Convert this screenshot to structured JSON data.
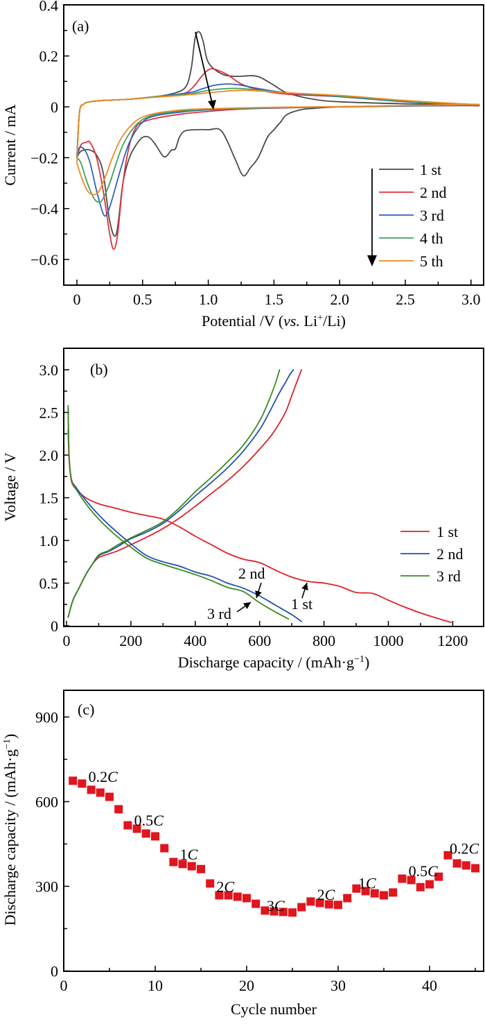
{
  "chart_data": [
    {
      "type": "line",
      "panel_label": "(a)",
      "title": "",
      "xlabel": "Potential /V (vs. Li⁺/Li)",
      "xlabel_parts": [
        "Potential /V (",
        "vs.",
        " Li",
        "+",
        "/Li)"
      ],
      "ylabel": "Current / mA",
      "xlim": [
        -0.1,
        3.1
      ],
      "ylim": [
        -0.7,
        0.4
      ],
      "xticks": [
        0,
        0.5,
        1.0,
        1.5,
        2.0,
        2.5,
        3.0
      ],
      "xtick_labels": [
        "0",
        "0.5",
        "1.0",
        "1.5",
        "2.0",
        "2.5",
        "3.0"
      ],
      "yticks": [
        0.4,
        0.2,
        0,
        -0.2,
        -0.4,
        -0.6
      ],
      "ytick_labels": [
        "0.4",
        "0.2",
        "0",
        "−0.2",
        "−0.4",
        "−0.6"
      ],
      "grid": false,
      "legend_position": "bottom-right",
      "legend_arrow": "down",
      "annotation": "arrow pointing down across anodic peaks (decreasing current with cycle number)",
      "series": [
        {
          "name": "1 st",
          "color": "#4a4a4a",
          "x": [
            0.0,
            0.02,
            0.05,
            0.1,
            0.15,
            0.2,
            0.25,
            0.3,
            0.35,
            0.4,
            0.45,
            0.5,
            0.55,
            0.6,
            0.65,
            0.68,
            0.72,
            0.75,
            0.78,
            0.82,
            0.9,
            1.0,
            1.1,
            1.2,
            1.25,
            1.28,
            1.32,
            1.38,
            1.45,
            1.5,
            1.55,
            1.6,
            1.7,
            1.8,
            2.0,
            2.5,
            3.0,
            3.0,
            2.5,
            2.0,
            1.8,
            1.6,
            1.5,
            1.4,
            1.35,
            1.3,
            1.2,
            1.1,
            1.0,
            0.96,
            0.93,
            0.9,
            0.87,
            0.83,
            0.75,
            0.6,
            0.4,
            0.2,
            0.1,
            0.05,
            0.02,
            0.0
          ],
          "y": [
            -0.2,
            -0.18,
            -0.17,
            -0.17,
            -0.19,
            -0.26,
            -0.45,
            -0.5,
            -0.3,
            -0.2,
            -0.15,
            -0.12,
            -0.12,
            -0.15,
            -0.19,
            -0.195,
            -0.17,
            -0.165,
            -0.12,
            -0.095,
            -0.09,
            -0.09,
            -0.095,
            -0.2,
            -0.26,
            -0.27,
            -0.24,
            -0.2,
            -0.12,
            -0.09,
            -0.06,
            -0.03,
            -0.012,
            -0.006,
            0.0,
            0.005,
            0.008,
            0.008,
            0.012,
            0.02,
            0.03,
            0.055,
            0.085,
            0.115,
            0.122,
            0.122,
            0.12,
            0.13,
            0.175,
            0.26,
            0.295,
            0.27,
            0.15,
            0.08,
            0.055,
            0.04,
            0.03,
            0.025,
            0.02,
            0.01,
            -0.02,
            -0.2
          ]
        },
        {
          "name": "2 nd",
          "color": "#e0303a",
          "x": [
            0.0,
            0.03,
            0.07,
            0.1,
            0.15,
            0.2,
            0.25,
            0.28,
            0.31,
            0.35,
            0.4,
            0.45,
            0.5,
            0.6,
            0.8,
            1.0,
            1.2,
            1.5,
            2.0,
            2.5,
            3.0,
            3.0,
            2.5,
            2.0,
            1.6,
            1.4,
            1.25,
            1.15,
            1.05,
            1.0,
            0.95,
            0.88,
            0.8,
            0.6,
            0.4,
            0.2,
            0.1,
            0.05,
            0.02,
            0.0
          ],
          "y": [
            -0.2,
            -0.15,
            -0.14,
            -0.14,
            -0.2,
            -0.33,
            -0.5,
            -0.56,
            -0.5,
            -0.3,
            -0.15,
            -0.08,
            -0.06,
            -0.045,
            -0.028,
            -0.018,
            -0.01,
            -0.005,
            0.0,
            0.003,
            0.005,
            0.005,
            0.02,
            0.04,
            0.05,
            0.065,
            0.09,
            0.125,
            0.148,
            0.145,
            0.12,
            0.075,
            0.05,
            0.04,
            0.03,
            0.025,
            0.02,
            0.01,
            -0.02,
            -0.2
          ]
        },
        {
          "name": "3 rd",
          "color": "#3060c0",
          "x": [
            0.0,
            0.02,
            0.06,
            0.1,
            0.15,
            0.2,
            0.23,
            0.27,
            0.33,
            0.4,
            0.5,
            0.6,
            0.8,
            1.0,
            1.5,
            2.0,
            2.5,
            3.0,
            3.0,
            2.5,
            2.0,
            1.6,
            1.4,
            1.25,
            1.15,
            1.05,
            0.95,
            0.85,
            0.6,
            0.4,
            0.2,
            0.1,
            0.05,
            0.02,
            0.0
          ],
          "y": [
            -0.2,
            -0.16,
            -0.17,
            -0.22,
            -0.33,
            -0.42,
            -0.42,
            -0.36,
            -0.25,
            -0.14,
            -0.06,
            -0.035,
            -0.02,
            -0.012,
            -0.004,
            0.0,
            0.003,
            0.006,
            0.006,
            0.02,
            0.04,
            0.055,
            0.07,
            0.085,
            0.09,
            0.085,
            0.07,
            0.055,
            0.04,
            0.03,
            0.025,
            0.02,
            0.01,
            -0.02,
            -0.2
          ]
        },
        {
          "name": "4 th",
          "color": "#40a060",
          "x": [
            0.0,
            0.03,
            0.08,
            0.13,
            0.17,
            0.2,
            0.25,
            0.3,
            0.35,
            0.42,
            0.5,
            0.6,
            0.8,
            1.0,
            1.5,
            2.0,
            2.5,
            3.0,
            3.0,
            2.5,
            2.0,
            1.6,
            1.4,
            1.25,
            1.15,
            1.05,
            0.95,
            0.85,
            0.6,
            0.4,
            0.2,
            0.1,
            0.05,
            0.02,
            0.0
          ],
          "y": [
            -0.2,
            -0.22,
            -0.3,
            -0.36,
            -0.375,
            -0.36,
            -0.3,
            -0.22,
            -0.15,
            -0.09,
            -0.05,
            -0.03,
            -0.016,
            -0.01,
            -0.003,
            0.0,
            0.004,
            0.007,
            0.007,
            0.022,
            0.042,
            0.055,
            0.065,
            0.072,
            0.072,
            0.068,
            0.06,
            0.05,
            0.04,
            0.03,
            0.025,
            0.02,
            0.01,
            -0.02,
            -0.2
          ]
        },
        {
          "name": "5 th",
          "color": "#f08a20",
          "x": [
            0.0,
            0.03,
            0.08,
            0.13,
            0.17,
            0.22,
            0.27,
            0.33,
            0.4,
            0.48,
            0.6,
            0.8,
            1.0,
            1.5,
            2.0,
            2.5,
            3.0,
            3.0,
            2.5,
            2.0,
            1.6,
            1.4,
            1.25,
            1.1,
            1.0,
            0.9,
            0.8,
            0.6,
            0.4,
            0.2,
            0.1,
            0.05,
            0.02,
            0.0
          ],
          "y": [
            -0.22,
            -0.27,
            -0.33,
            -0.345,
            -0.33,
            -0.27,
            -0.2,
            -0.13,
            -0.08,
            -0.045,
            -0.025,
            -0.012,
            -0.007,
            -0.002,
            0.001,
            0.005,
            0.01,
            0.01,
            0.025,
            0.045,
            0.055,
            0.062,
            0.065,
            0.06,
            0.055,
            0.05,
            0.045,
            0.038,
            0.03,
            0.025,
            0.02,
            0.01,
            -0.02,
            -0.22
          ]
        }
      ]
    },
    {
      "type": "line",
      "panel_label": "(b)",
      "title": "",
      "xlabel": "Discharge capacity / (mAh·g⁻¹)",
      "xlabel_parts": [
        "Discharge capacity / (mAh·g",
        "−1",
        ")"
      ],
      "ylabel": "Voltage / V",
      "xlim": [
        -10,
        1300
      ],
      "ylim": [
        0,
        3.25
      ],
      "xticks": [
        0,
        200,
        400,
        600,
        800,
        1000,
        1200
      ],
      "xtick_labels": [
        "0",
        "200",
        "400",
        "600",
        "800",
        "1000",
        "1200"
      ],
      "yticks": [
        0,
        0.5,
        1.0,
        1.5,
        2.0,
        2.5,
        3.0
      ],
      "ytick_labels": [
        "0",
        "0.5",
        "1.0",
        "1.5",
        "2.0",
        "2.5",
        "3.0"
      ],
      "grid": false,
      "legend_position": "right",
      "annotations": [
        {
          "text": "2 nd",
          "points_to": [
            590,
            0.33
          ]
        },
        {
          "text": "3 rd",
          "points_to": [
            570,
            0.27
          ]
        },
        {
          "text": "1 st",
          "points_to": [
            745,
            0.52
          ]
        }
      ],
      "series": [
        {
          "name": "1 st",
          "color": "#e0202a",
          "discharge": {
            "x": [
              5,
              8,
              15,
              30,
              60,
              100,
              150,
              200,
              250,
              300,
              350,
              400,
              450,
              500,
              550,
              600,
              650,
              700,
              750,
              800,
              850,
              900,
              950,
              1000,
              1050,
              1100,
              1150,
              1195
            ],
            "y": [
              2.3,
              1.95,
              1.7,
              1.6,
              1.5,
              1.43,
              1.38,
              1.33,
              1.29,
              1.25,
              1.16,
              1.05,
              0.95,
              0.85,
              0.78,
              0.74,
              0.65,
              0.57,
              0.52,
              0.5,
              0.46,
              0.39,
              0.38,
              0.3,
              0.22,
              0.15,
              0.09,
              0.04
            ]
          },
          "charge": {
            "x": [
              5,
              20,
              40,
              60,
              80,
              100,
              130,
              160,
              200,
              250,
              300,
              350,
              400,
              450,
              500,
              550,
              600,
              640,
              680,
              700,
              715,
              730
            ],
            "y": [
              0.1,
              0.3,
              0.45,
              0.6,
              0.72,
              0.8,
              0.84,
              0.88,
              0.95,
              1.04,
              1.14,
              1.26,
              1.4,
              1.55,
              1.7,
              1.87,
              2.07,
              2.25,
              2.5,
              2.7,
              2.85,
              3.0
            ]
          }
        },
        {
          "name": "2 nd",
          "color": "#2050b0",
          "discharge": {
            "x": [
              5,
              8,
              15,
              30,
              60,
              100,
              150,
              200,
              250,
              300,
              350,
              400,
              450,
              500,
              550,
              600,
              650,
              700,
              730
            ],
            "y": [
              2.55,
              2.0,
              1.72,
              1.62,
              1.47,
              1.3,
              1.12,
              0.96,
              0.82,
              0.75,
              0.7,
              0.63,
              0.58,
              0.5,
              0.44,
              0.35,
              0.24,
              0.13,
              0.05
            ]
          },
          "charge": {
            "x": [
              5,
              20,
              40,
              60,
              80,
              100,
              130,
              160,
              200,
              250,
              300,
              350,
              400,
              450,
              500,
              550,
              600,
              630,
              660,
              680,
              695,
              705
            ],
            "y": [
              0.1,
              0.3,
              0.45,
              0.6,
              0.72,
              0.82,
              0.87,
              0.93,
              1.02,
              1.1,
              1.2,
              1.35,
              1.52,
              1.68,
              1.85,
              2.05,
              2.3,
              2.5,
              2.72,
              2.85,
              2.95,
              3.0
            ]
          }
        },
        {
          "name": "3 rd",
          "color": "#3a8a20",
          "discharge": {
            "x": [
              5,
              8,
              15,
              30,
              60,
              100,
              150,
              200,
              250,
              300,
              350,
              400,
              450,
              500,
              550,
              600,
              650,
              690
            ],
            "y": [
              2.58,
              2.0,
              1.72,
              1.6,
              1.43,
              1.25,
              1.07,
              0.92,
              0.79,
              0.72,
              0.66,
              0.6,
              0.53,
              0.45,
              0.4,
              0.27,
              0.16,
              0.08
            ]
          },
          "charge": {
            "x": [
              5,
              20,
              40,
              60,
              80,
              100,
              130,
              160,
              200,
              250,
              300,
              350,
              400,
              450,
              500,
              550,
              600,
              630,
              650,
              662
            ],
            "y": [
              0.1,
              0.3,
              0.45,
              0.6,
              0.72,
              0.83,
              0.88,
              0.95,
              1.03,
              1.12,
              1.22,
              1.38,
              1.57,
              1.74,
              1.92,
              2.12,
              2.4,
              2.65,
              2.85,
              3.0
            ]
          }
        }
      ]
    },
    {
      "type": "scatter",
      "panel_label": "(c)",
      "title": "",
      "xlabel": "Cycle number",
      "ylabel": "Discharge capacity / (mAh·g⁻¹)",
      "ylabel_parts": [
        "Discharge capacity / (mAh·g",
        "−1",
        ")"
      ],
      "xlim": [
        0,
        46
      ],
      "ylim": [
        0,
        1000
      ],
      "xticks": [
        0,
        10,
        20,
        30,
        40
      ],
      "xtick_labels": [
        "0",
        "10",
        "20",
        "30",
        "40"
      ],
      "yticks": [
        0,
        300,
        600,
        900
      ],
      "ytick_labels": [
        "0",
        "300",
        "600",
        "900"
      ],
      "grid": false,
      "marker": "square",
      "color": "#e0151e",
      "x": [
        1,
        2,
        3,
        4,
        5,
        6,
        7,
        8,
        9,
        10,
        11,
        12,
        13,
        14,
        15,
        16,
        17,
        18,
        19,
        20,
        21,
        22,
        23,
        24,
        25,
        26,
        27,
        28,
        29,
        30,
        31,
        32,
        33,
        34,
        35,
        36,
        37,
        38,
        39,
        40,
        41,
        42,
        43,
        44,
        45
      ],
      "values": [
        674,
        664,
        642,
        632,
        617,
        573,
        516,
        504,
        487,
        477,
        435,
        386,
        379,
        371,
        361,
        310,
        268,
        268,
        263,
        258,
        238,
        214,
        211,
        209,
        207,
        226,
        246,
        241,
        236,
        234,
        258,
        292,
        283,
        275,
        268,
        278,
        327,
        322,
        297,
        307,
        334,
        410,
        381,
        374,
        364
      ],
      "rate_labels": [
        {
          "num": "0.2",
          "unit": "C",
          "at_cycle": 3,
          "at_value": 680
        },
        {
          "num": "0.5",
          "unit": "C",
          "at_cycle": 8,
          "at_value": 525
        },
        {
          "num": "1",
          "unit": "C",
          "at_cycle": 13,
          "at_value": 405
        },
        {
          "num": "2",
          "unit": "C",
          "at_cycle": 17,
          "at_value": 290
        },
        {
          "num": "3",
          "unit": "C",
          "at_cycle": 22.5,
          "at_value": 222
        },
        {
          "num": "2",
          "unit": "C",
          "at_cycle": 28,
          "at_value": 262
        },
        {
          "num": "1",
          "unit": "C",
          "at_cycle": 32.5,
          "at_value": 303
        },
        {
          "num": "0.5",
          "unit": "C",
          "at_cycle": 38,
          "at_value": 345
        },
        {
          "num": "0.2",
          "unit": "C",
          "at_cycle": 42.5,
          "at_value": 425
        }
      ]
    }
  ]
}
